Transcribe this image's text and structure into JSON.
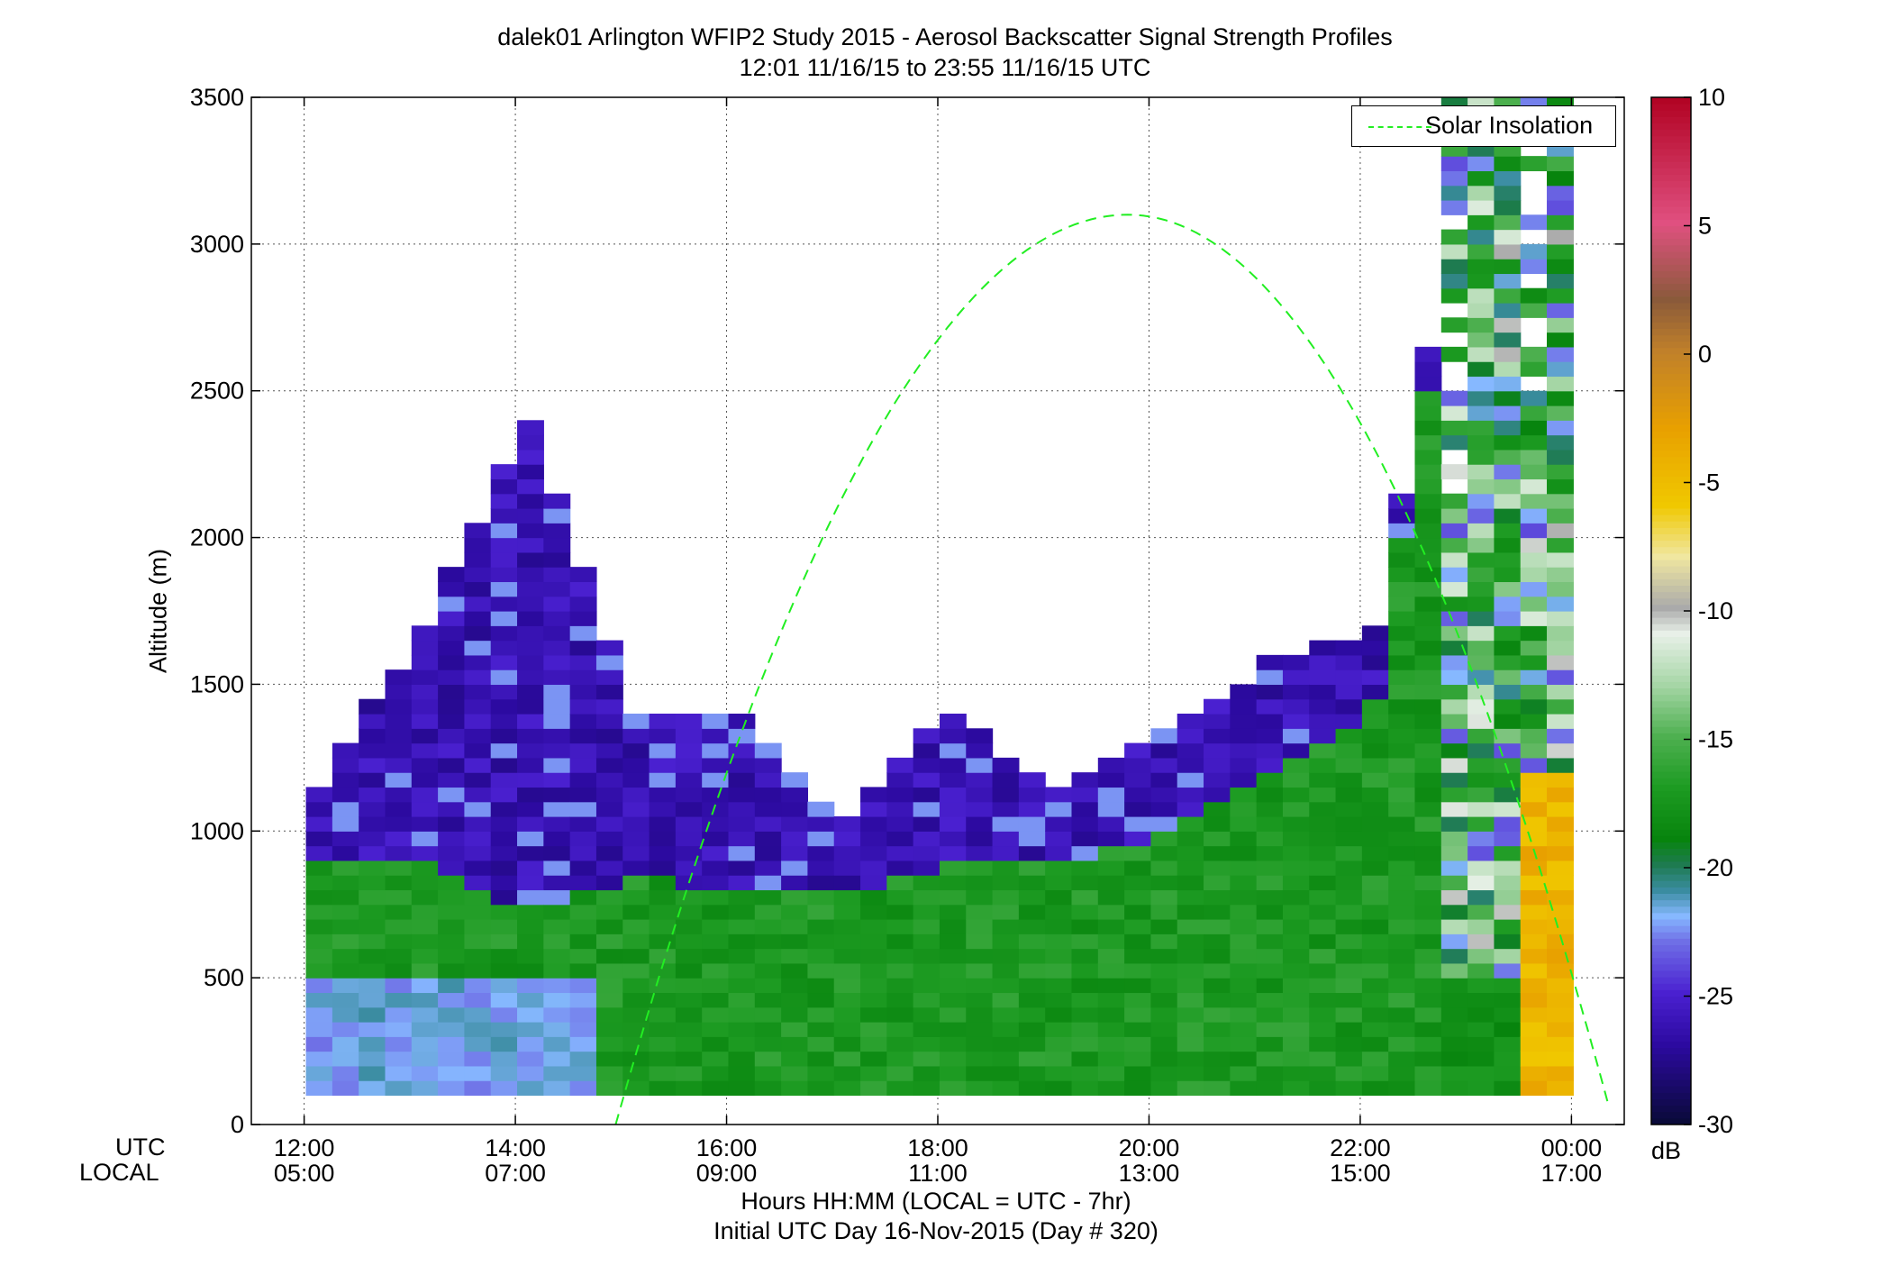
{
  "chart_data": {
    "type": "heatmap",
    "title": "dalek01 Arlington WFIP2 Study 2015 - Aerosol Backscatter Signal Strength Profiles",
    "subtitle": "12:01 11/16/15 to 23:55 11/16/15  UTC",
    "ylabel": "Altitude (m)",
    "xlabel": "Hours HH:MM  (LOCAL = UTC - 7hr)",
    "xlabel2": "Initial UTC Day 16-Nov-2015 (Day # 320)",
    "row_label_utc": "UTC",
    "row_label_local": "LOCAL",
    "ylim": [
      0,
      3500
    ],
    "y_ticks": [
      "0",
      "500",
      "1000",
      "1500",
      "2000",
      "2500",
      "3000",
      "3500"
    ],
    "xlim_hours": [
      11.5,
      24.5
    ],
    "x_ticks_utc": [
      "12:00",
      "14:00",
      "16:00",
      "18:00",
      "20:00",
      "22:00",
      "00:00"
    ],
    "x_ticks_local": [
      "05:00",
      "07:00",
      "09:00",
      "11:00",
      "13:00",
      "15:00",
      "17:00"
    ],
    "grid": true,
    "legend_position": "top-right",
    "legend_entries": [
      "Solar Insolation"
    ],
    "colorbar": {
      "min": -30,
      "max": 10,
      "unit": "dB",
      "tick_labels": [
        "10",
        "5",
        "0",
        "-5",
        "-10",
        "-15",
        "-20",
        "-25",
        "-30"
      ]
    },
    "color_palette": {
      "green_strong": "#07840d",
      "green_mid": "#1d9b22",
      "teal": "#2f8c74",
      "light_blue": "#86b8ff",
      "violet": "#4418c8",
      "purple_dark": "#3a0aa8",
      "yellow": "#f0c800",
      "solar_curve": "#22ee22"
    },
    "solar_insolation_curve": {
      "start_hour": 14.95,
      "peak_hour": 19.8,
      "peak_altitude_m": 3100,
      "end_hour": 24.4
    },
    "profiles": [
      {
        "time": "12:01",
        "boundary_layer_top_m": 900,
        "aerosol_layer_top_m": 1150
      },
      {
        "time": "13:00",
        "boundary_layer_top_m": 870,
        "aerosol_layer_top_m": 1650
      },
      {
        "time": "14:00",
        "boundary_layer_top_m": 700,
        "aerosol_layer_top_m": 2400
      },
      {
        "time": "15:00",
        "boundary_layer_top_m": 820,
        "aerosol_layer_top_m": 1400
      },
      {
        "time": "16:00",
        "boundary_layer_top_m": 780,
        "aerosol_layer_top_m": 1400
      },
      {
        "time": "17:00",
        "boundary_layer_top_m": 760,
        "aerosol_layer_top_m": 1000
      },
      {
        "time": "18:00",
        "boundary_layer_top_m": 850,
        "aerosol_layer_top_m": 1400
      },
      {
        "time": "19:00",
        "boundary_layer_top_m": 870,
        "aerosol_layer_top_m": 1100
      },
      {
        "time": "20:00",
        "boundary_layer_top_m": 950,
        "aerosol_layer_top_m": 1300
      },
      {
        "time": "21:00",
        "boundary_layer_top_m": 1150,
        "aerosol_layer_top_m": 1550
      },
      {
        "time": "22:00",
        "boundary_layer_top_m": 1400,
        "aerosol_layer_top_m": 1650
      },
      {
        "time": "23:00",
        "boundary_layer_top_m": 3500,
        "aerosol_layer_top_m": 3500
      },
      {
        "time": "23:55",
        "boundary_layer_top_m": 3500,
        "aerosol_layer_top_m": 3500
      }
    ]
  }
}
